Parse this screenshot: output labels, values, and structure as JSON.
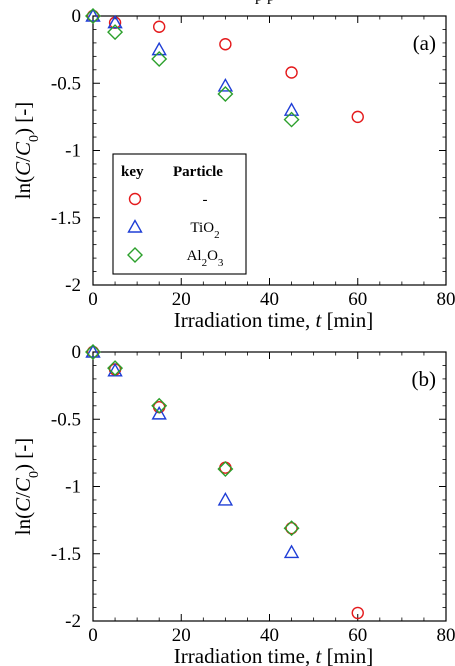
{
  "figure_title_fragment": "p        p",
  "chart_data": [
    {
      "type": "scatter",
      "panel_label": "(a)",
      "xlabel": "Irradiation time, t [min]",
      "ylabel": "ln(C/C0) [-]",
      "xlim": [
        0,
        80
      ],
      "ylim": [
        -2,
        0
      ],
      "xticks": [
        "0",
        "20",
        "40",
        "60",
        "80"
      ],
      "yticks": [
        "0",
        "-0.5",
        "-1",
        "-1.5",
        "-2"
      ],
      "legend": {
        "position": "lower-left",
        "header_key": "key",
        "header_particle": "Particle"
      },
      "series": [
        {
          "name": "-",
          "color": "#e41a1c",
          "marker": "circle",
          "x": [
            0,
            5,
            15,
            30,
            45,
            60
          ],
          "y": [
            0,
            -0.05,
            -0.08,
            -0.21,
            -0.42,
            -0.75
          ]
        },
        {
          "name": "TiO2",
          "color": "#1f3ed6",
          "marker": "triangle",
          "x": [
            0,
            5,
            15,
            30,
            45
          ],
          "y": [
            0,
            -0.05,
            -0.25,
            -0.52,
            -0.7
          ]
        },
        {
          "name": "Al2O3",
          "color": "#2ca02c",
          "marker": "diamond",
          "x": [
            0,
            5,
            15,
            30,
            45
          ],
          "y": [
            0,
            -0.12,
            -0.32,
            -0.58,
            -0.77
          ]
        }
      ]
    },
    {
      "type": "scatter",
      "panel_label": "(b)",
      "xlabel": "Irradiation time, t [min]",
      "ylabel": "ln(C/C0) [-]",
      "xlim": [
        0,
        80
      ],
      "ylim": [
        -2,
        0
      ],
      "xticks": [
        "0",
        "20",
        "40",
        "60",
        "80"
      ],
      "yticks": [
        "0",
        "-0.5",
        "-1",
        "-1.5",
        "-2"
      ],
      "series": [
        {
          "name": "-",
          "color": "#e41a1c",
          "marker": "circle",
          "x": [
            0,
            5,
            15,
            30,
            45,
            60
          ],
          "y": [
            0,
            -0.13,
            -0.41,
            -0.86,
            -1.31,
            -1.94
          ]
        },
        {
          "name": "TiO2",
          "color": "#1f3ed6",
          "marker": "triangle",
          "x": [
            0,
            5,
            15,
            30,
            45
          ],
          "y": [
            0,
            -0.14,
            -0.46,
            -1.1,
            -1.49
          ]
        },
        {
          "name": "Al2O3",
          "color": "#2ca02c",
          "marker": "diamond",
          "x": [
            0,
            5,
            15,
            30,
            45
          ],
          "y": [
            0,
            -0.12,
            -0.4,
            -0.87,
            -1.31
          ]
        }
      ]
    }
  ]
}
